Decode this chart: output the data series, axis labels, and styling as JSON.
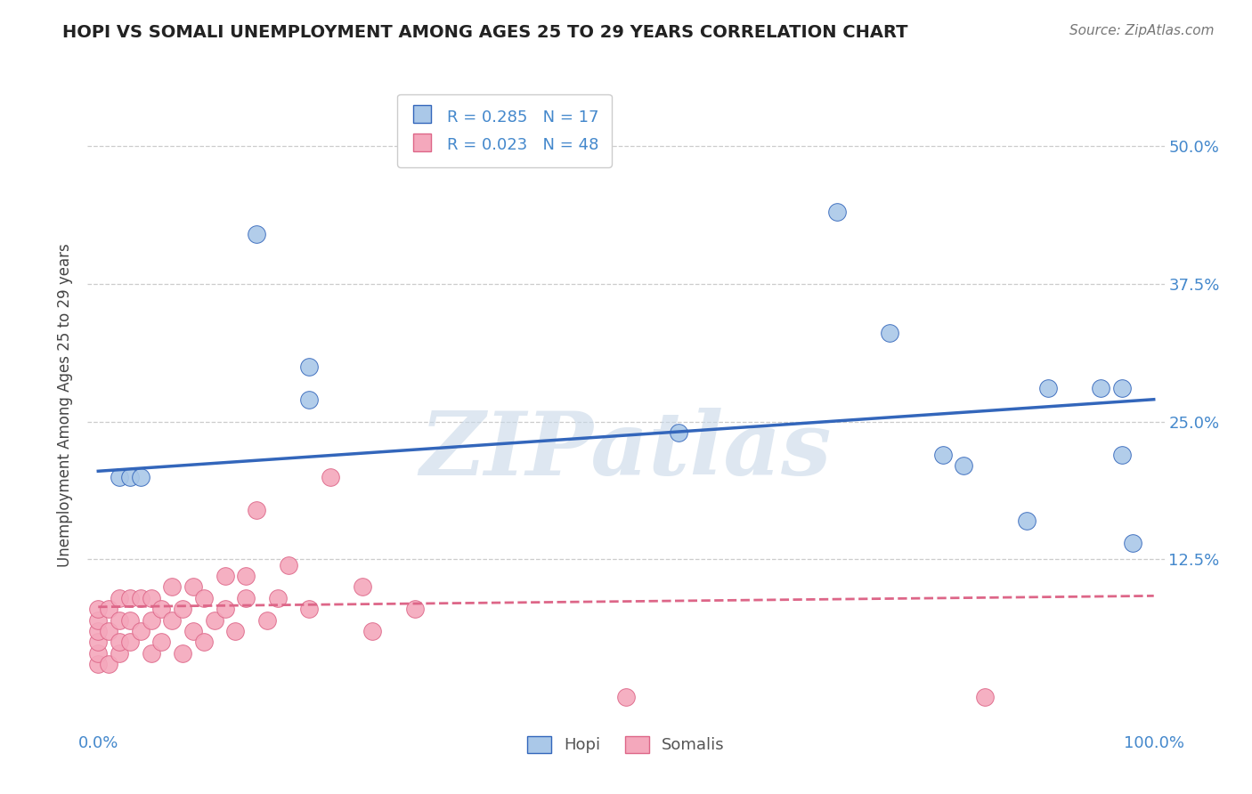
{
  "title": "HOPI VS SOMALI UNEMPLOYMENT AMONG AGES 25 TO 29 YEARS CORRELATION CHART",
  "source": "Source: ZipAtlas.com",
  "ylabel": "Unemployment Among Ages 25 to 29 years",
  "xlim": [
    -1,
    101
  ],
  "ylim": [
    -3,
    56
  ],
  "yticks": [
    0,
    12.5,
    25.0,
    37.5,
    50.0
  ],
  "ytick_labels": [
    "",
    "12.5%",
    "25.0%",
    "37.5%",
    "50.0%"
  ],
  "xticks": [
    0,
    25,
    50,
    75,
    100
  ],
  "xtick_labels": [
    "0.0%",
    "",
    "",
    "",
    "100.0%"
  ],
  "hopi_color": "#aac8e8",
  "somali_color": "#f4a8bc",
  "hopi_line_color": "#3366bb",
  "somali_line_color": "#dd6688",
  "hopi_R": 0.285,
  "hopi_N": 17,
  "somali_R": 0.023,
  "somali_N": 48,
  "hopi_x": [
    2,
    3,
    4,
    15,
    20,
    20,
    55,
    70,
    75,
    80,
    82,
    88,
    90,
    95,
    97,
    97,
    98
  ],
  "hopi_y": [
    20,
    20,
    20,
    42,
    30,
    27,
    24,
    44,
    33,
    22,
    21,
    16,
    28,
    28,
    28,
    22,
    14
  ],
  "somali_x": [
    0,
    0,
    0,
    0,
    0,
    0,
    1,
    1,
    1,
    2,
    2,
    2,
    2,
    3,
    3,
    3,
    4,
    4,
    5,
    5,
    5,
    6,
    6,
    7,
    7,
    8,
    8,
    9,
    9,
    10,
    10,
    11,
    12,
    12,
    13,
    14,
    14,
    15,
    16,
    17,
    18,
    20,
    22,
    25,
    26,
    30,
    50,
    84
  ],
  "somali_y": [
    3,
    4,
    5,
    6,
    7,
    8,
    3,
    6,
    8,
    4,
    5,
    7,
    9,
    5,
    7,
    9,
    6,
    9,
    4,
    7,
    9,
    5,
    8,
    7,
    10,
    4,
    8,
    6,
    10,
    5,
    9,
    7,
    8,
    11,
    6,
    9,
    11,
    17,
    7,
    9,
    12,
    8,
    20,
    10,
    6,
    8,
    0,
    0
  ],
  "hopi_trend_x": [
    0,
    100
  ],
  "hopi_trend_y": [
    20.5,
    27.0
  ],
  "somali_trend_x": [
    0,
    100
  ],
  "somali_trend_y": [
    8.2,
    9.2
  ],
  "grid_color": "#cccccc",
  "grid_linestyle": "--",
  "background_color": "#ffffff",
  "watermark": "ZIPatlas",
  "watermark_color": "#c8d8e8",
  "legend_color": "#4488cc"
}
